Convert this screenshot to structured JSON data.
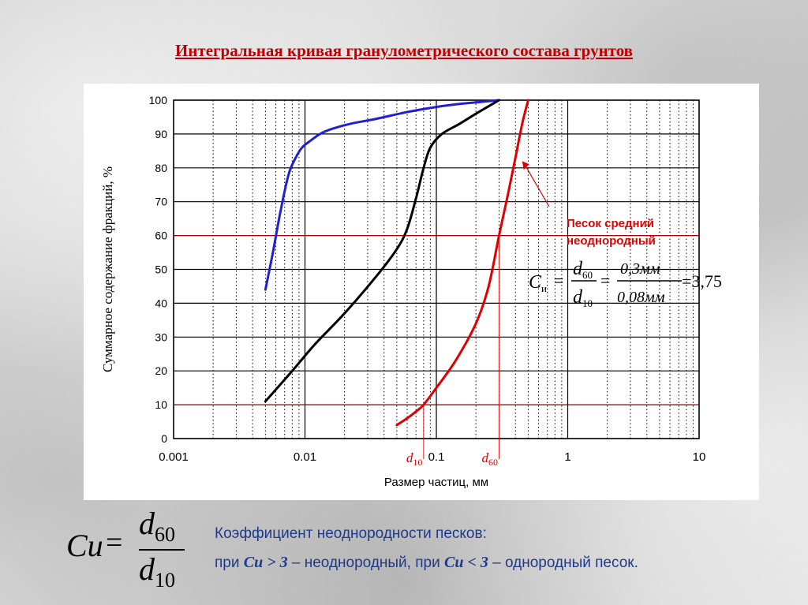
{
  "slide_title": "Интегральная кривая гранулометрического состава грунтов",
  "chart_data": {
    "type": "line",
    "x_scale": "log",
    "xlim": [
      0.001,
      10
    ],
    "ylim": [
      0,
      100
    ],
    "xlabel": "Размер частиц, мм",
    "ylabel": "Суммарное содержание фракций, %",
    "x_ticks": [
      "0.001",
      "0.01",
      "0.1",
      "1",
      "10"
    ],
    "x_tick_values": [
      0.001,
      0.01,
      0.1,
      1,
      10
    ],
    "y_ticks": [
      0,
      10,
      20,
      30,
      40,
      50,
      60,
      70,
      80,
      90,
      100
    ],
    "grid": true,
    "series": [
      {
        "color": "#1f1fd6",
        "x": [
          0.005,
          0.0057,
          0.0065,
          0.0075,
          0.0085,
          0.0095,
          0.011,
          0.013,
          0.016,
          0.022,
          0.035,
          0.06,
          0.1,
          0.16,
          0.25,
          0.3
        ],
        "y": [
          44,
          55,
          67,
          78,
          83,
          86,
          88,
          90,
          91.5,
          93,
          94.5,
          96.5,
          98,
          99,
          99.7,
          100
        ]
      },
      {
        "color": "#000000",
        "x": [
          0.005,
          0.008,
          0.012,
          0.02,
          0.035,
          0.05,
          0.06,
          0.07,
          0.08,
          0.09,
          0.11,
          0.15,
          0.2,
          0.3
        ],
        "y": [
          11,
          20,
          28,
          37,
          48,
          56,
          62,
          71,
          80,
          86,
          90,
          93,
          96,
          100
        ]
      },
      {
        "color": "#e00000",
        "x": [
          0.05,
          0.06,
          0.07,
          0.08,
          0.1,
          0.14,
          0.2,
          0.25,
          0.3,
          0.35,
          0.4,
          0.45,
          0.5
        ],
        "y": [
          4,
          6,
          8,
          10,
          15,
          23,
          34,
          45,
          60,
          72,
          83,
          93,
          100
        ]
      }
    ],
    "reference_lines": {
      "y_values": [
        60,
        10
      ],
      "d10_value": 0.08,
      "d60_value": 0.3,
      "color": "#e00000"
    },
    "marker_labels": {
      "d10": "d",
      "d10_sub": "10",
      "d60": "d",
      "d60_sub": "60"
    },
    "annotation": {
      "line1": "Песок средний",
      "line2": "неоднородный",
      "arrow_target": [
        0.45,
        82
      ],
      "formula": {
        "lhs": "C",
        "lhs_sub": "и",
        "eq": "=",
        "num": "d",
        "num_sub": "60",
        "den": "d",
        "den_sub": "10",
        "eq2": "=",
        "num2": "0,3мм",
        "den2": "0,08мм",
        "eq3": "=3,75"
      }
    }
  },
  "formula": {
    "lhs": "Cu",
    "eq": "=",
    "num": "d",
    "num_sub": "60",
    "den": "d",
    "den_sub": "10"
  },
  "description": {
    "line1": "Коэффициент неоднородности песков:",
    "line2_prefix": "при ",
    "cu1": "Cu",
    "op1": " > 3",
    "mid": " – неоднородный, при ",
    "cu2": "Cu",
    "op2": " < 3",
    "suffix": " – однородный песок."
  }
}
